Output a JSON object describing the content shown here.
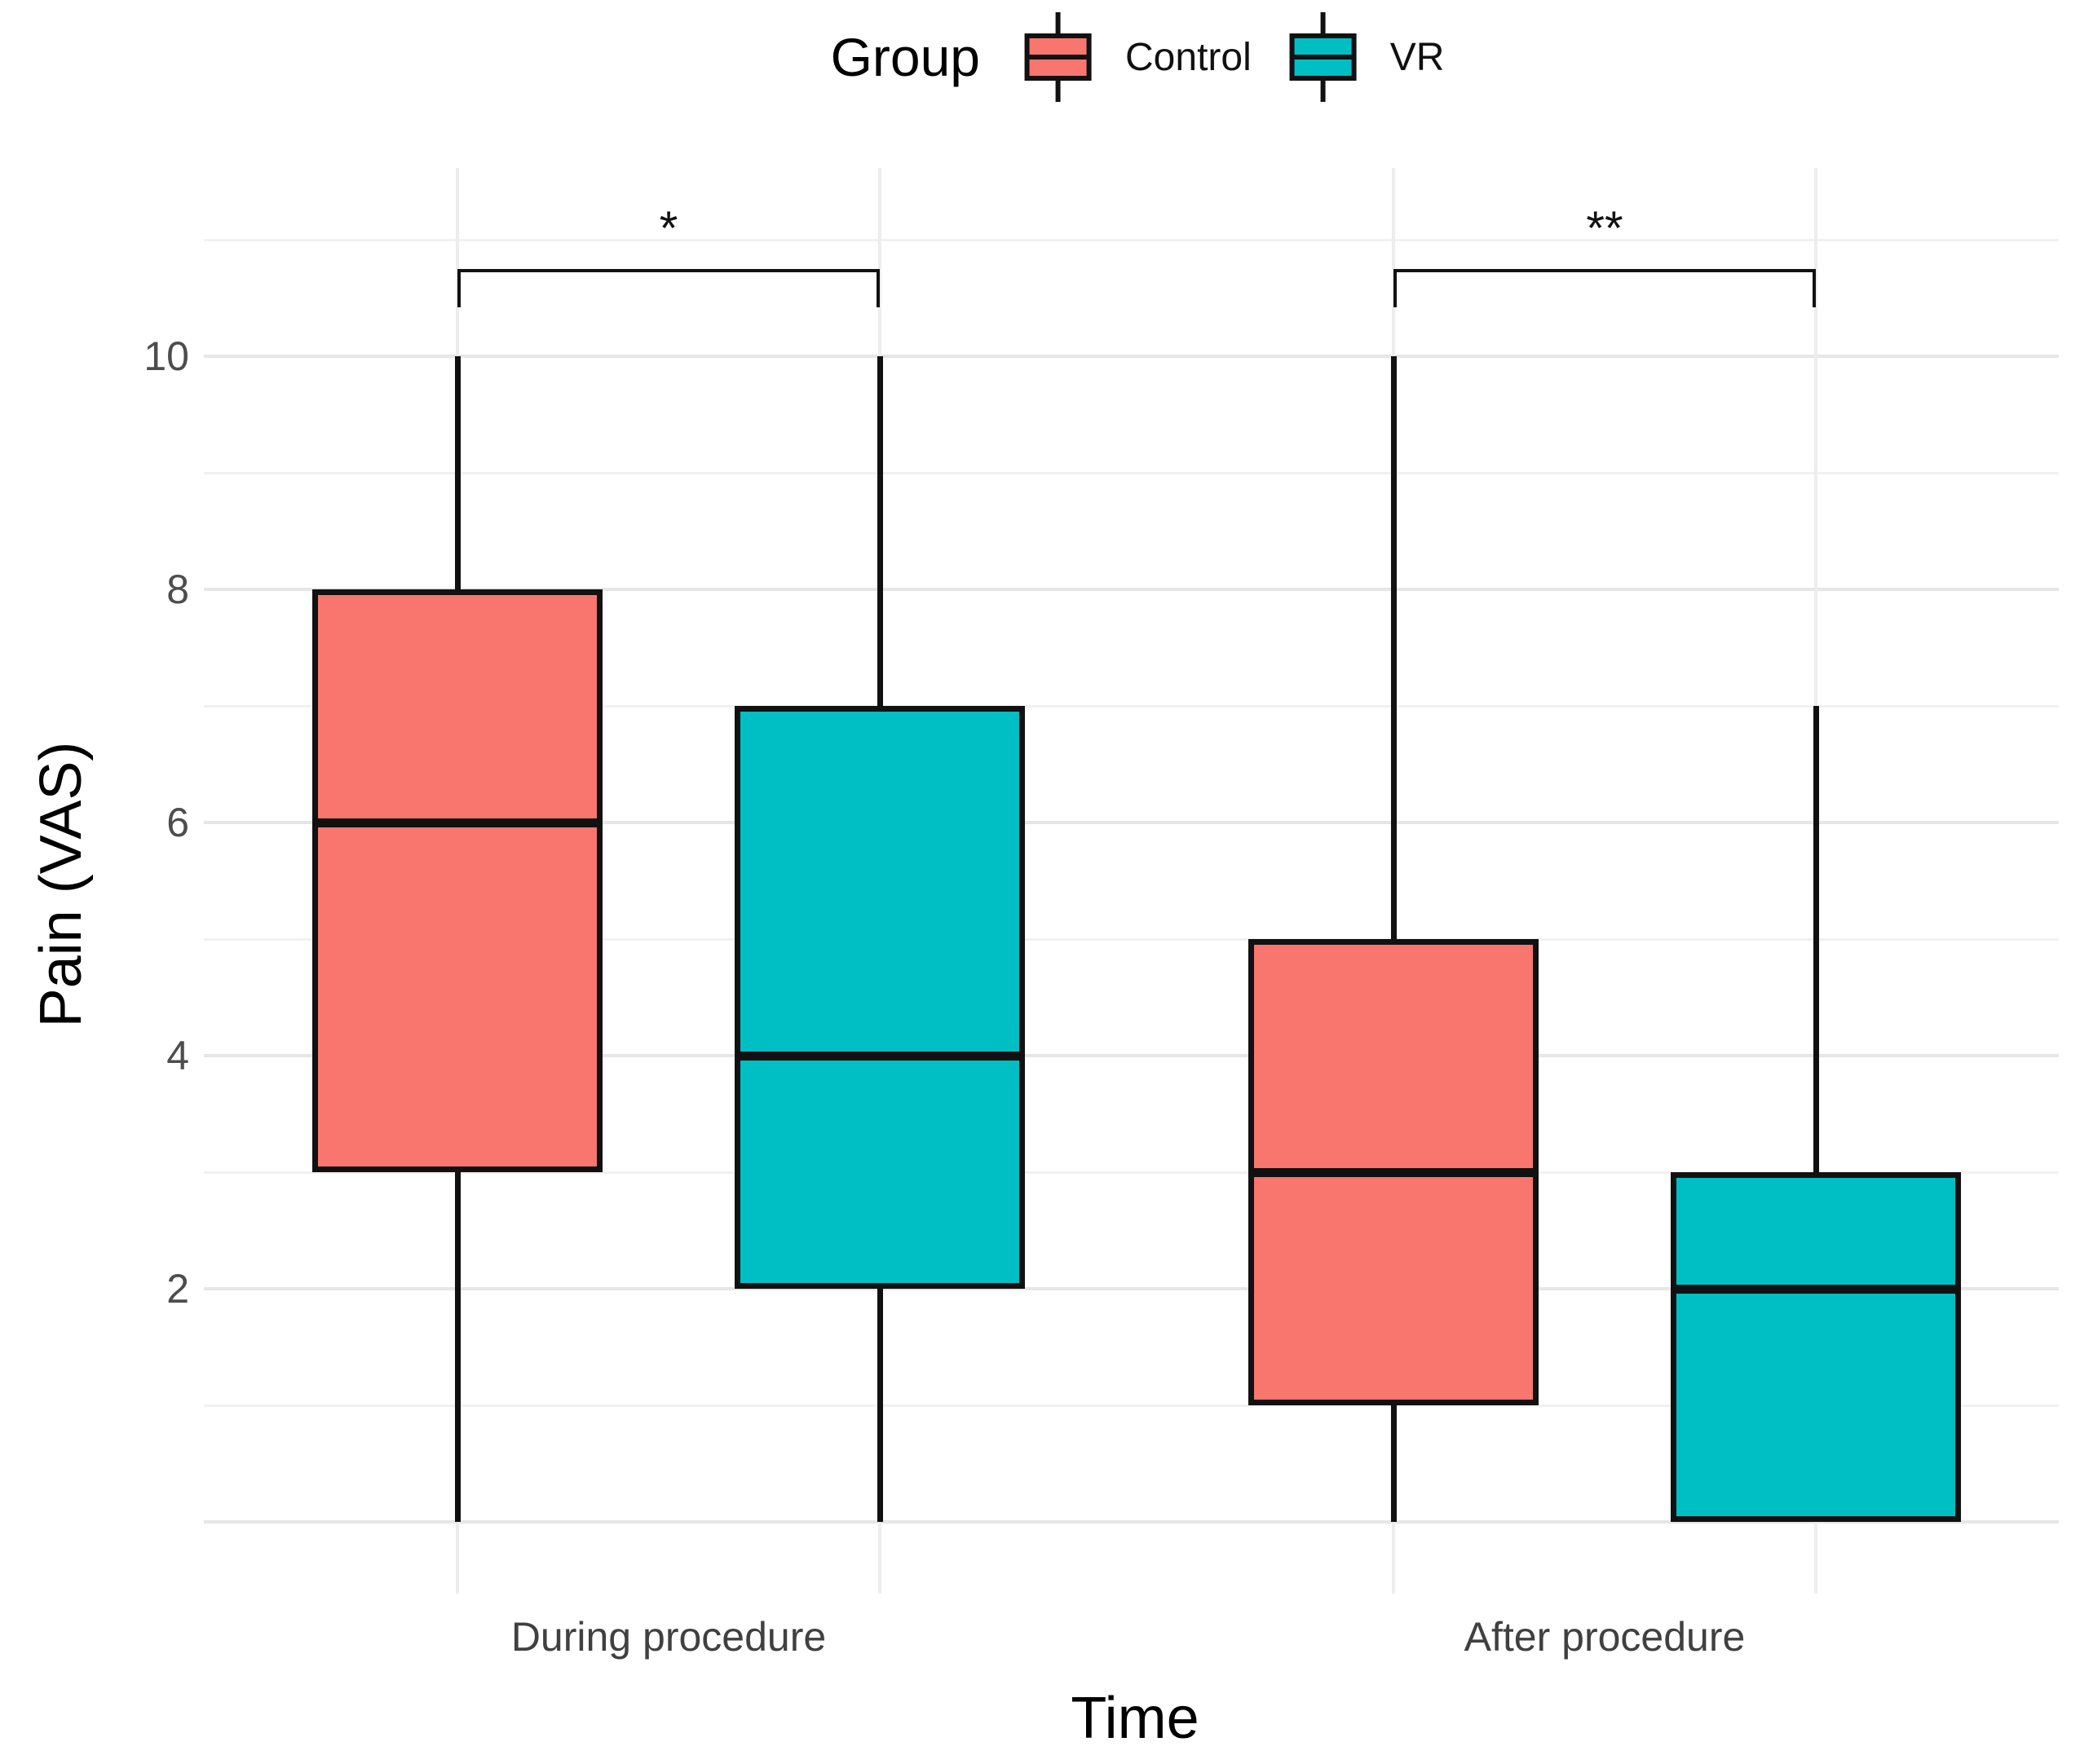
{
  "chart_data": {
    "type": "boxplot",
    "categories": [
      "During procedure",
      "After procedure"
    ],
    "series": [
      {
        "name": "Control",
        "color": "#F8766D",
        "boxes": [
          {
            "category": "During procedure",
            "min": 0,
            "q1": 3,
            "median": 6,
            "q3": 8,
            "max": 10
          },
          {
            "category": "After procedure",
            "min": 0,
            "q1": 1,
            "median": 3,
            "q3": 5,
            "max": 10
          }
        ]
      },
      {
        "name": "VR",
        "color": "#00BFC4",
        "boxes": [
          {
            "category": "During procedure",
            "min": 0,
            "q1": 2,
            "median": 4,
            "q3": 7,
            "max": 10
          },
          {
            "category": "After procedure",
            "min": 0,
            "q1": 0,
            "median": 2,
            "q3": 3,
            "max": 7
          }
        ]
      }
    ],
    "xlabel": "Time",
    "ylabel": "Pain (VAS)",
    "ylim": [
      -0.6,
      11.6
    ],
    "y_ticks": [
      2,
      4,
      6,
      8,
      10
    ],
    "y_major_gridlines": [
      0,
      2,
      4,
      6,
      8,
      10
    ],
    "y_minor_gridlines": [
      1,
      3,
      5,
      7,
      9,
      11
    ],
    "grid": "horizontal majors and minors; light vertical guides at each box position",
    "legend_position": "top-center",
    "annotations": [
      {
        "label": "*",
        "category": "During procedure"
      },
      {
        "label": "**",
        "category": "After procedure"
      }
    ]
  },
  "legend": {
    "title": "Group",
    "items": [
      {
        "label": "Control",
        "color": "#F8766D"
      },
      {
        "label": "VR",
        "color": "#00BFC4"
      }
    ]
  },
  "colors": {
    "control_fill": "#F8766D",
    "vr_fill": "#00BFC4",
    "box_border": "#111111",
    "major_grid": "#e6e6e6",
    "minor_grid": "#f1f1f1",
    "tick_text": "#4d4d4d",
    "background": "#ffffff"
  }
}
